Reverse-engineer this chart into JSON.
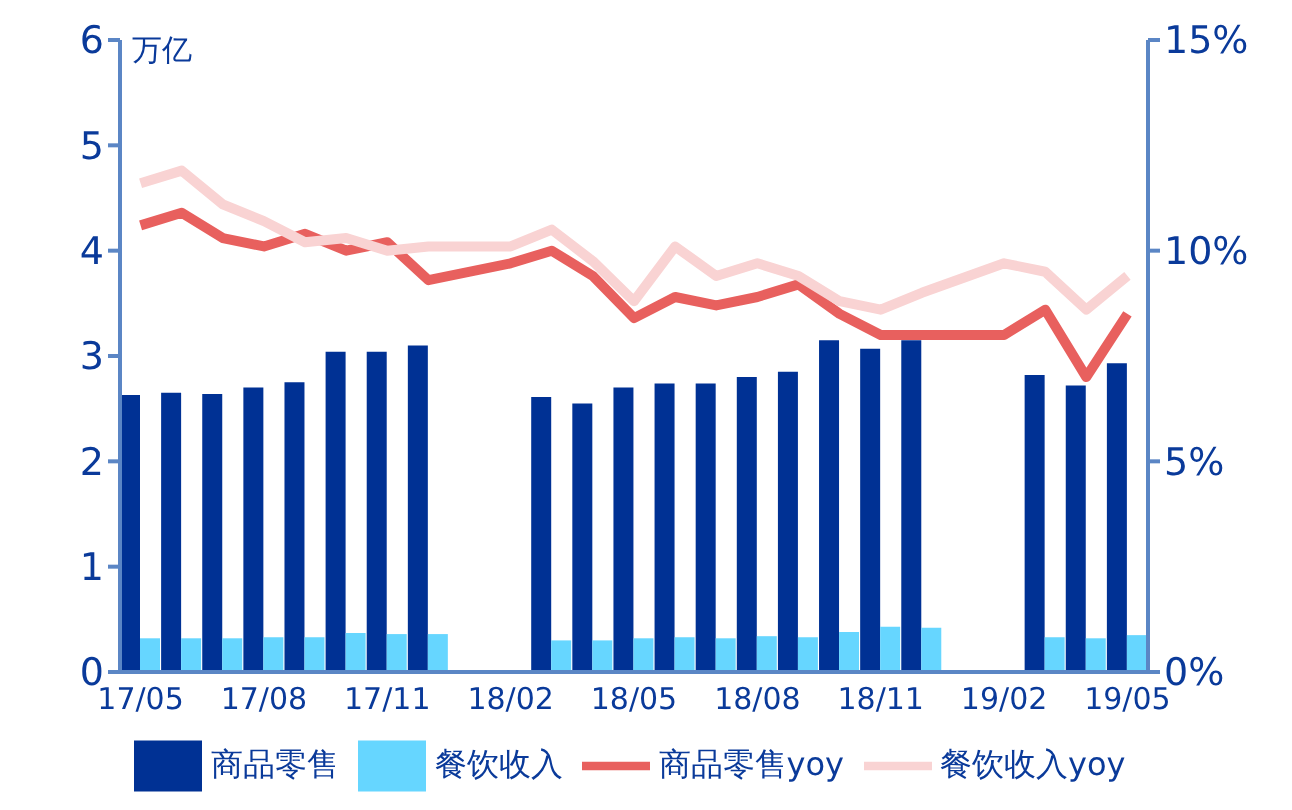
{
  "chart_data": {
    "type": "bar",
    "ylabel": "万亿",
    "categories": [
      "17/05",
      null,
      null,
      "17/08",
      null,
      null,
      "17/11",
      null,
      null,
      "18/02",
      null,
      null,
      "18/05",
      null,
      null,
      "18/08",
      null,
      null,
      "18/11",
      null,
      null,
      "19/02",
      null,
      null,
      "19/05"
    ],
    "series": [
      {
        "name": "商品零售",
        "color": "#003194",
        "values": [
          2.63,
          2.65,
          2.64,
          2.7,
          2.75,
          3.04,
          3.04,
          3.1,
          null,
          null,
          2.61,
          2.55,
          2.7,
          2.74,
          2.74,
          2.8,
          2.85,
          3.15,
          3.07,
          3.15,
          null,
          null,
          2.82,
          2.72,
          2.93
        ]
      },
      {
        "name": "餐饮收入",
        "color": "#66d6ff",
        "values": [
          0.32,
          0.32,
          0.32,
          0.33,
          0.33,
          0.37,
          0.36,
          0.36,
          null,
          null,
          0.3,
          0.3,
          0.32,
          0.33,
          0.32,
          0.34,
          0.33,
          0.38,
          0.43,
          0.42,
          null,
          null,
          0.33,
          0.32,
          0.35
        ]
      },
      {
        "name": "商品零售yoy",
        "type": "line",
        "axis": "y2",
        "color": "#e8605e",
        "values": [
          10.6,
          10.9,
          10.3,
          10.1,
          10.4,
          10.0,
          10.2,
          9.3,
          null,
          9.7,
          10.0,
          9.4,
          8.4,
          8.9,
          8.7,
          8.9,
          9.2,
          8.5,
          8.0,
          8.0,
          null,
          8.0,
          8.6,
          7.0,
          8.5
        ]
      },
      {
        "name": "餐饮收入yoy",
        "type": "line",
        "axis": "y2",
        "color": "#f9d3d3",
        "values": [
          11.6,
          11.9,
          11.1,
          10.7,
          10.2,
          10.3,
          10.0,
          10.1,
          null,
          10.1,
          10.5,
          9.75,
          8.8,
          10.1,
          9.4,
          9.7,
          9.4,
          8.8,
          8.6,
          9.0,
          null,
          9.7,
          9.5,
          8.6,
          9.4
        ]
      }
    ],
    "ylim": [
      0,
      6
    ],
    "yticks": [
      0,
      1,
      2,
      3,
      4,
      5,
      6
    ],
    "y2lim": [
      0,
      15
    ],
    "y2ticks": [
      {
        "value": 0,
        "label": "0%"
      },
      {
        "value": 5,
        "label": "5%"
      },
      {
        "value": 10,
        "label": "10%"
      },
      {
        "value": 15,
        "label": "15%"
      }
    ],
    "grid": false,
    "legend": "bottom",
    "marker": "none"
  }
}
